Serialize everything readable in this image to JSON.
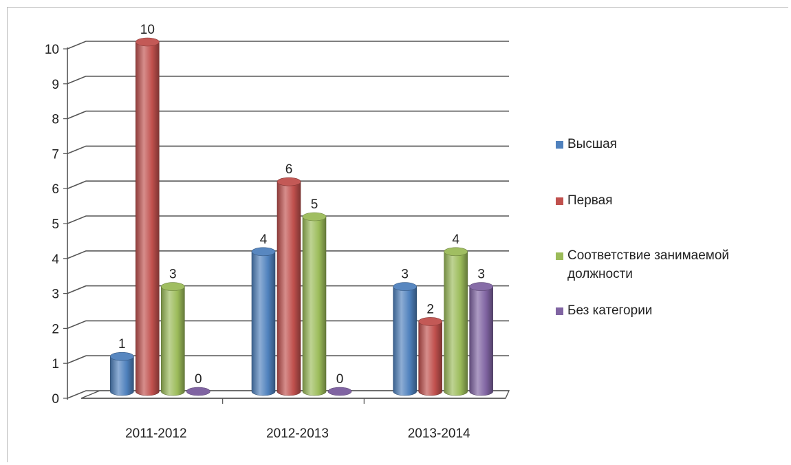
{
  "chart_data": {
    "type": "bar",
    "title": "",
    "xlabel": "",
    "ylabel": "",
    "ylim": [
      0,
      10
    ],
    "yticks": [
      "0",
      "1",
      "2",
      "3",
      "4",
      "5",
      "6",
      "7",
      "8",
      "9",
      "10"
    ],
    "categories": [
      "2011-2012",
      "2012-2013",
      "2013-2014"
    ],
    "series": [
      {
        "name": "Высшая",
        "color": "#4f81bd",
        "values": [
          1,
          4,
          3
        ]
      },
      {
        "name": "Первая",
        "color": "#c0504d",
        "values": [
          10,
          6,
          2
        ]
      },
      {
        "name": "Соответствие занимаемой должности",
        "color": "#9bbb59",
        "values": [
          3,
          5,
          4
        ]
      },
      {
        "name": "Без категории",
        "color": "#8064a2",
        "values": [
          0,
          0,
          3
        ]
      }
    ],
    "bar_style": "3d-cylinder",
    "grid": true,
    "legend_position": "right"
  }
}
